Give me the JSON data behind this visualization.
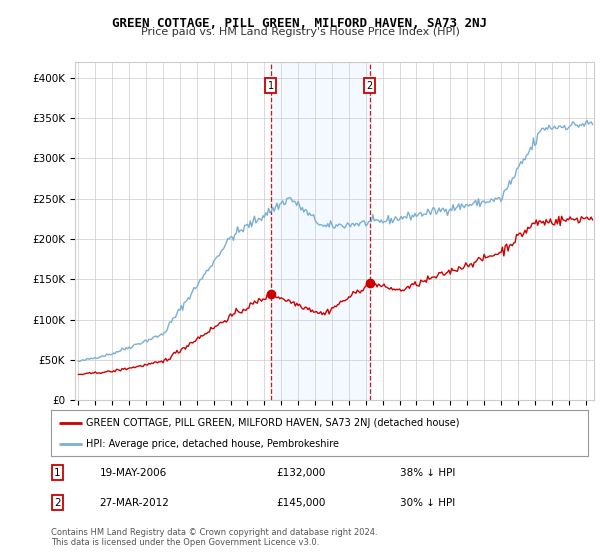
{
  "title": "GREEN COTTAGE, PILL GREEN, MILFORD HAVEN, SA73 2NJ",
  "subtitle": "Price paid vs. HM Land Registry's House Price Index (HPI)",
  "legend_line1": "GREEN COTTAGE, PILL GREEN, MILFORD HAVEN, SA73 2NJ (detached house)",
  "legend_line2": "HPI: Average price, detached house, Pembrokeshire",
  "annotation1_label": "1",
  "annotation1_date": "19-MAY-2006",
  "annotation1_price": "£132,000",
  "annotation1_hpi": "38% ↓ HPI",
  "annotation1_year": 2006.38,
  "annotation1_value": 132000,
  "annotation2_label": "2",
  "annotation2_date": "27-MAR-2012",
  "annotation2_price": "£145,000",
  "annotation2_hpi": "30% ↓ HPI",
  "annotation2_year": 2012.24,
  "annotation2_value": 145000,
  "red_color": "#cc0000",
  "blue_color": "#7aafd4",
  "shading_color": "#ddeeff",
  "background_color": "#ffffff",
  "grid_color": "#cccccc",
  "ylim": [
    0,
    420000
  ],
  "yticks": [
    0,
    50000,
    100000,
    150000,
    200000,
    250000,
    300000,
    350000,
    400000
  ],
  "xlim_start": 1994.8,
  "xlim_end": 2025.5,
  "footer_line1": "Contains HM Land Registry data © Crown copyright and database right 2024.",
  "footer_line2": "This data is licensed under the Open Government Licence v3.0."
}
